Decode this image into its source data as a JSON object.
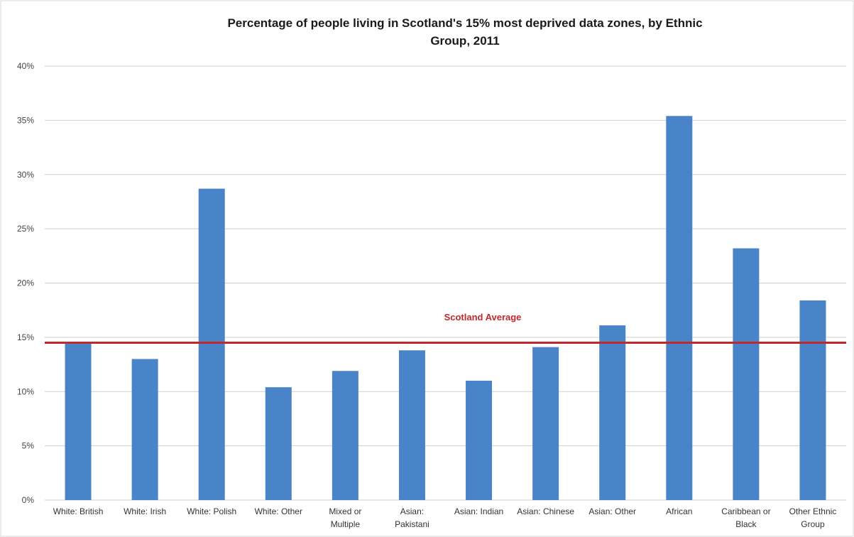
{
  "chart_data": {
    "type": "bar",
    "title": "Percentage of people living in Scotland's 15% most deprived data zones, by Ethnic Group, 2011",
    "title_lines": [
      "Percentage of people living in Scotland's 15% most deprived data zones, by Ethnic",
      "Group, 2011"
    ],
    "xlabel": "",
    "ylabel": "",
    "ylim": [
      0,
      40
    ],
    "y_ticks": [
      "0%",
      "5%",
      "10%",
      "15%",
      "20%",
      "25%",
      "30%",
      "35%",
      "40%"
    ],
    "grid": true,
    "legend": "none",
    "categories": [
      [
        "White: British"
      ],
      [
        "White: Irish"
      ],
      [
        "White: Polish"
      ],
      [
        "White: Other"
      ],
      [
        "Mixed or",
        "Multiple"
      ],
      [
        "Asian:",
        "Pakistani"
      ],
      [
        "Asian: Indian"
      ],
      [
        "Asian: Chinese"
      ],
      [
        "Asian: Other"
      ],
      [
        "African"
      ],
      [
        "Caribbean or",
        "Black"
      ],
      [
        "Other Ethnic",
        "Group"
      ]
    ],
    "values": [
      14.4,
      13.0,
      28.7,
      10.4,
      11.9,
      13.8,
      11.0,
      14.1,
      16.1,
      35.4,
      23.2,
      18.4
    ],
    "reference_line": {
      "label": "Scotland Average",
      "value": 14.5
    },
    "colors": {
      "bar": "#4a84c8",
      "reference_line": "#c0282c",
      "reference_label": "#c0282c"
    }
  }
}
